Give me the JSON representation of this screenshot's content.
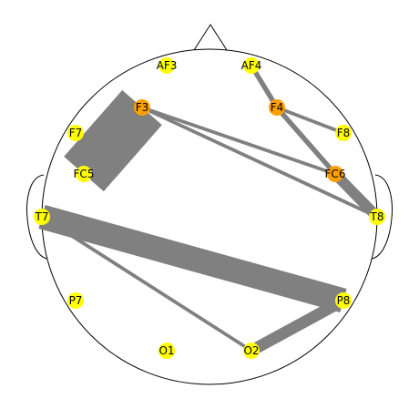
{
  "colors": {
    "background": "#ffffff",
    "outline": "#000000",
    "link": "#808080",
    "node_default": "#ffff00",
    "node_highlight": "#ff9f00"
  },
  "electrodes": [
    {
      "id": "AF3",
      "label": "AF3",
      "highlight": false
    },
    {
      "id": "AF4",
      "label": "AF4",
      "highlight": false
    },
    {
      "id": "F3",
      "label": "F3",
      "highlight": true
    },
    {
      "id": "F4",
      "label": "F4",
      "highlight": true
    },
    {
      "id": "F7",
      "label": "F7",
      "highlight": false
    },
    {
      "id": "F8",
      "label": "F8",
      "highlight": false
    },
    {
      "id": "FC5",
      "label": "FC5",
      "highlight": false
    },
    {
      "id": "FC6",
      "label": "FC6",
      "highlight": true
    },
    {
      "id": "T7",
      "label": "T7",
      "highlight": false
    },
    {
      "id": "T8",
      "label": "T8",
      "highlight": false
    },
    {
      "id": "P7",
      "label": "P7",
      "highlight": false
    },
    {
      "id": "P8",
      "label": "P8",
      "highlight": false
    },
    {
      "id": "O1",
      "label": "O1",
      "highlight": false
    },
    {
      "id": "O2",
      "label": "O2",
      "highlight": false
    }
  ],
  "connections": [
    {
      "from": "F3",
      "to": "FC5",
      "strength": 1.0
    },
    {
      "from": "T7",
      "to": "P8",
      "strength": 0.45
    },
    {
      "from": "P8",
      "to": "O2",
      "strength": 0.2
    },
    {
      "from": "FC6",
      "to": "T8",
      "strength": 0.18
    },
    {
      "from": "F4",
      "to": "FC6",
      "strength": 0.07
    },
    {
      "from": "AF4",
      "to": "F4",
      "strength": 0.07
    },
    {
      "from": "F3",
      "to": "FC6",
      "strength": 0.04
    },
    {
      "from": "F3",
      "to": "T8",
      "strength": 0.04
    },
    {
      "from": "F4",
      "to": "F8",
      "strength": 0.04
    },
    {
      "from": "T7",
      "to": "O2",
      "strength": 0.04
    }
  ]
}
